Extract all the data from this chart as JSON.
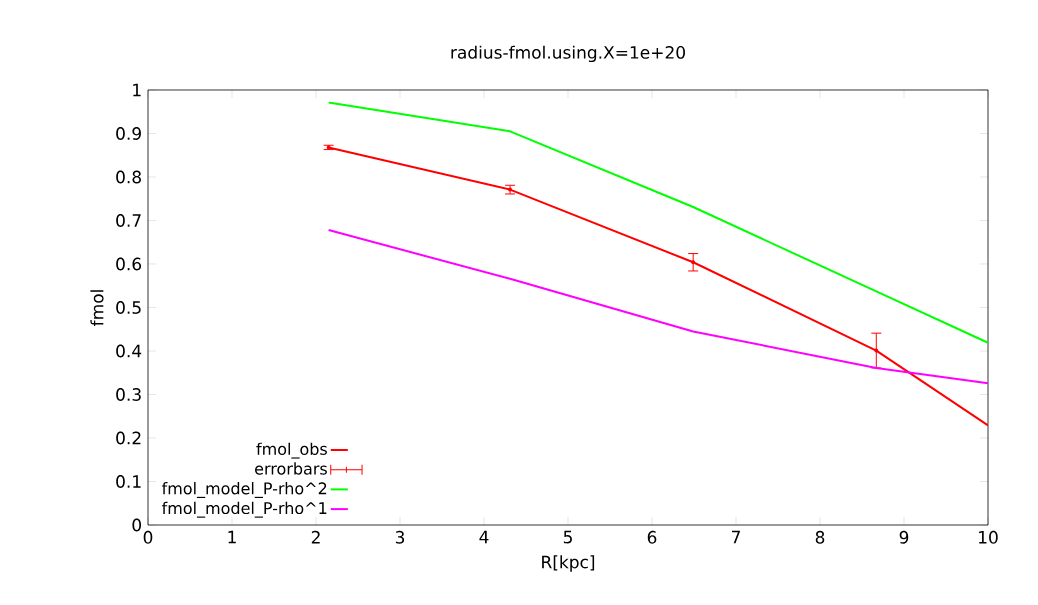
{
  "chart_data": {
    "type": "line",
    "title": "radius-fmol.using.X=1e+20",
    "xlabel": "R[kpc]",
    "ylabel": "fmol",
    "x": [
      2.15,
      4.31,
      6.49,
      8.67,
      10
    ],
    "series": [
      {
        "name": "fmol_obs",
        "color": "#ff0000",
        "values": [
          0.868,
          0.771,
          0.604,
          0.401,
          0.229
        ]
      },
      {
        "name": "errorbars",
        "type": "scatter",
        "color": "#ff0000",
        "x": [
          2.15,
          4.31,
          6.49,
          8.67
        ],
        "values": [
          0.868,
          0.771,
          0.604,
          0.401
        ],
        "errors": [
          0.005,
          0.01,
          0.02,
          0.04
        ]
      },
      {
        "name": "fmol_model_P-rho^2",
        "color": "#00ff00",
        "values": [
          0.971,
          0.905,
          0.731,
          0.537,
          0.419
        ]
      },
      {
        "name": "fmol_model_P-rho^1",
        "color": "#ff00ff",
        "values": [
          0.678,
          0.566,
          0.445,
          0.361,
          0.326
        ]
      }
    ],
    "xlim": [
      0,
      10
    ],
    "ylim": [
      0,
      1
    ],
    "xticks": [
      0,
      1,
      2,
      3,
      4,
      5,
      6,
      7,
      8,
      9,
      10
    ],
    "yticks": [
      0,
      0.1,
      0.2,
      0.3,
      0.4,
      0.5,
      0.6,
      0.7,
      0.8,
      0.9,
      1
    ],
    "legend": "bottom left"
  }
}
